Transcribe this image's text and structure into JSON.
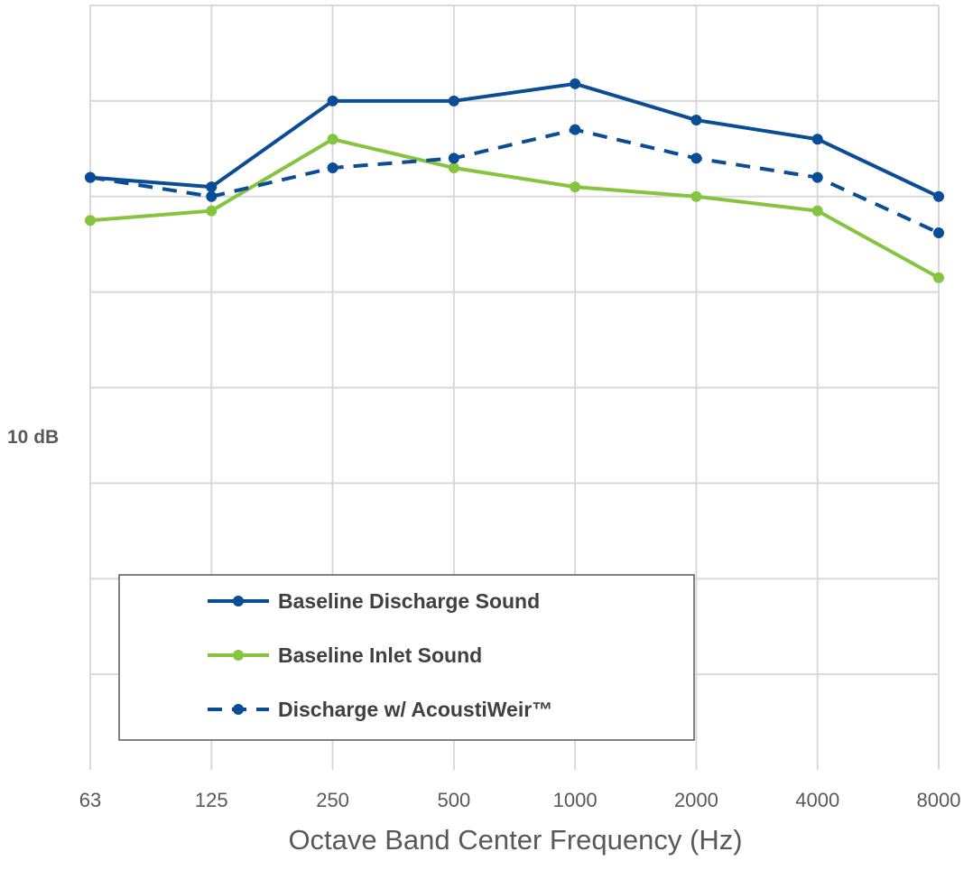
{
  "chart_data": {
    "type": "line",
    "categories": [
      "63",
      "125",
      "250",
      "500",
      "1000",
      "2000",
      "4000",
      "8000"
    ],
    "xlabel": "Octave Band Center Frequency (Hz)",
    "scale_label": "10 dB",
    "ylim": [
      0,
      8
    ],
    "grid": true,
    "legend_position": "bottom-left",
    "series": [
      {
        "name": "Baseline Discharge Sound",
        "values": [
          6.2,
          6.1,
          7.0,
          7.0,
          7.18,
          6.8,
          6.6,
          6.0
        ],
        "color": "#0a4d96",
        "style": "solid"
      },
      {
        "name": "Baseline Inlet Sound",
        "values": [
          5.75,
          5.85,
          6.6,
          6.3,
          6.1,
          6.0,
          5.85,
          5.15
        ],
        "color": "#86c440",
        "style": "solid"
      },
      {
        "name": "Discharge w/ AcoustiWeir™",
        "values": [
          6.2,
          6.0,
          6.3,
          6.4,
          6.7,
          6.4,
          6.2,
          5.62
        ],
        "color": "#0a4d96",
        "style": "dashed"
      }
    ]
  }
}
